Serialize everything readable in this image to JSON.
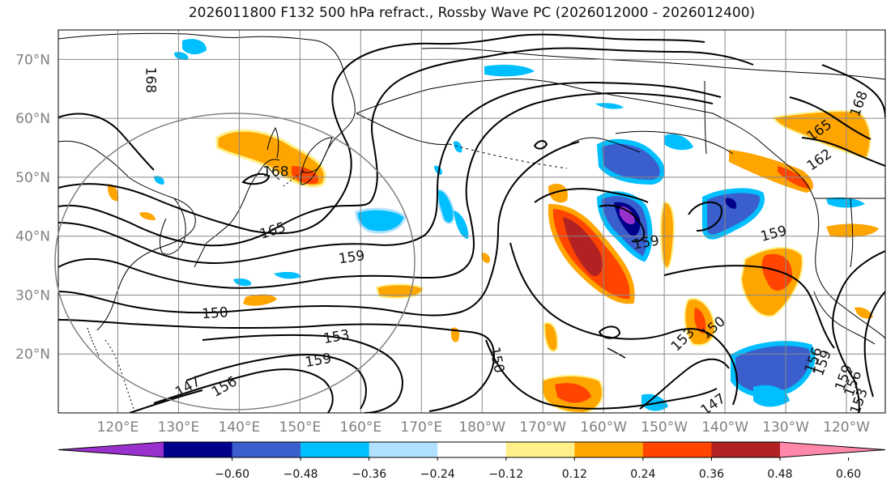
{
  "title": "2026011800 F132 500 hPa refract., Rossby Wave PC (2026012000 - 2026012400)",
  "latitudes": [
    {
      "label": "70°N",
      "value": 70
    },
    {
      "label": "60°N",
      "value": 60
    },
    {
      "label": "50°N",
      "value": 50
    },
    {
      "label": "40°N",
      "value": 40
    },
    {
      "label": "30°N",
      "value": 30
    },
    {
      "label": "20°N",
      "value": 20
    }
  ],
  "longitudes": [
    {
      "label": "120°E",
      "value": 120
    },
    {
      "label": "130°E",
      "value": 130
    },
    {
      "label": "140°E",
      "value": 140
    },
    {
      "label": "150°E",
      "value": 150
    },
    {
      "label": "160°E",
      "value": 160
    },
    {
      "label": "170°E",
      "value": 170
    },
    {
      "label": "180°W",
      "value": 180
    },
    {
      "label": "170°W",
      "value": 190
    },
    {
      "label": "160°W",
      "value": 200
    },
    {
      "label": "150°W",
      "value": 210
    },
    {
      "label": "140°W",
      "value": 220
    },
    {
      "label": "130°W",
      "value": 230
    },
    {
      "label": "120°W",
      "value": 240
    }
  ],
  "colorbar": {
    "colors": [
      "#9932cc",
      "#00008b",
      "#3a5fcd",
      "#00bfff",
      "#b0e2ff",
      "#ffffff",
      "#fff08a",
      "#ffa500",
      "#ff4500",
      "#b22222",
      "#ff88aa"
    ],
    "ticks": [
      "−0.60",
      "−0.48",
      "−0.36",
      "−0.24",
      "−0.12",
      "0.12",
      "0.24",
      "0.36",
      "0.48",
      "0.60"
    ]
  },
  "contour_labels": [
    {
      "text": "168",
      "lon": 125.5,
      "lat": 66.5,
      "rotate": 90
    },
    {
      "text": "168",
      "lon": 146,
      "lat": 51,
      "rotate": 0
    },
    {
      "text": "165",
      "lon": 145.5,
      "lat": 41,
      "rotate": -18
    },
    {
      "text": "159",
      "lon": 158.5,
      "lat": 36.5,
      "rotate": -8
    },
    {
      "text": "150",
      "lon": 136,
      "lat": 27,
      "rotate": -4
    },
    {
      "text": "153",
      "lon": 156,
      "lat": 23,
      "rotate": -10
    },
    {
      "text": "159",
      "lon": 153,
      "lat": 19,
      "rotate": -10
    },
    {
      "text": "156",
      "lon": 137.5,
      "lat": 14.5,
      "rotate": -30
    },
    {
      "text": "147",
      "lon": 131.5,
      "lat": 14.5,
      "rotate": -30
    },
    {
      "text": "150",
      "lon": 182.5,
      "lat": 19,
      "rotate": 78
    },
    {
      "text": "159",
      "lon": 207,
      "lat": 39,
      "rotate": -10
    },
    {
      "text": "153",
      "lon": 213,
      "lat": 22.5,
      "rotate": -45
    },
    {
      "text": "150",
      "lon": 218,
      "lat": 24.5,
      "rotate": -40
    },
    {
      "text": "147",
      "lon": 218,
      "lat": 11.5,
      "rotate": -35
    },
    {
      "text": "159",
      "lon": 228,
      "lat": 40.5,
      "rotate": -15
    },
    {
      "text": "165",
      "lon": 235.5,
      "lat": 58,
      "rotate": -35
    },
    {
      "text": "162",
      "lon": 235.5,
      "lat": 53,
      "rotate": -35
    },
    {
      "text": "168",
      "lon": 242,
      "lat": 62.5,
      "rotate": -70
    },
    {
      "text": "156",
      "lon": 234.5,
      "lat": 19,
      "rotate": -70
    },
    {
      "text": "159",
      "lon": 236,
      "lat": 18.5,
      "rotate": -70
    },
    {
      "text": "159",
      "lon": 239.5,
      "lat": 16,
      "rotate": -70
    },
    {
      "text": "156",
      "lon": 241,
      "lat": 15,
      "rotate": -70
    },
    {
      "text": "153",
      "lon": 242,
      "lat": 12,
      "rotate": -70
    }
  ]
}
